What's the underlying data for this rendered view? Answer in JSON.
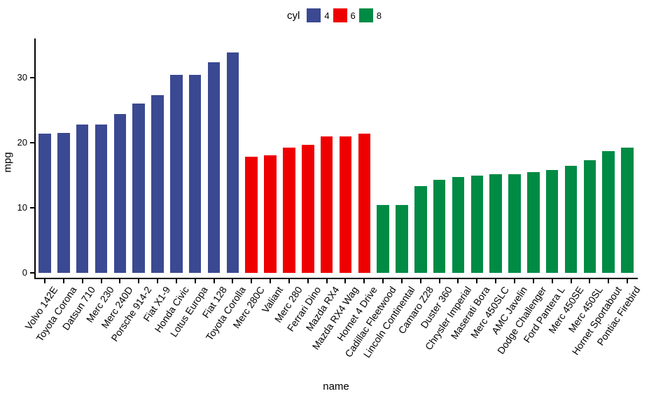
{
  "chart_data": {
    "type": "bar",
    "title": "",
    "xlabel": "name",
    "ylabel": "mpg",
    "grid": false,
    "background": "#ffffff",
    "axis_color": "#000000",
    "ylim": [
      0,
      36
    ],
    "yticks": [
      0,
      10,
      20,
      30
    ],
    "legend": {
      "title": "cyl",
      "position": "top",
      "entries": [
        {
          "label": "4",
          "color": "#3B4992"
        },
        {
          "label": "6",
          "color": "#EE0000"
        },
        {
          "label": "8",
          "color": "#008B45"
        }
      ]
    },
    "bars": [
      {
        "name": "Volvo 142E",
        "mpg": 21.4,
        "cyl": "4"
      },
      {
        "name": "Toyota Corona",
        "mpg": 21.5,
        "cyl": "4"
      },
      {
        "name": "Datsun 710",
        "mpg": 22.8,
        "cyl": "4"
      },
      {
        "name": "Merc 230",
        "mpg": 22.8,
        "cyl": "4"
      },
      {
        "name": "Merc 240D",
        "mpg": 24.4,
        "cyl": "4"
      },
      {
        "name": "Porsche 914-2",
        "mpg": 26.0,
        "cyl": "4"
      },
      {
        "name": "Fiat X1-9",
        "mpg": 27.3,
        "cyl": "4"
      },
      {
        "name": "Honda Civic",
        "mpg": 30.4,
        "cyl": "4"
      },
      {
        "name": "Lotus Europa",
        "mpg": 30.4,
        "cyl": "4"
      },
      {
        "name": "Fiat 128",
        "mpg": 32.4,
        "cyl": "4"
      },
      {
        "name": "Toyota Corolla",
        "mpg": 33.9,
        "cyl": "4"
      },
      {
        "name": "Merc 280C",
        "mpg": 17.8,
        "cyl": "6"
      },
      {
        "name": "Valiant",
        "mpg": 18.1,
        "cyl": "6"
      },
      {
        "name": "Merc 280",
        "mpg": 19.2,
        "cyl": "6"
      },
      {
        "name": "Ferrari Dino",
        "mpg": 19.7,
        "cyl": "6"
      },
      {
        "name": "Mazda RX4",
        "mpg": 21.0,
        "cyl": "6"
      },
      {
        "name": "Mazda RX4 Wag",
        "mpg": 21.0,
        "cyl": "6"
      },
      {
        "name": "Hornet 4 Drive",
        "mpg": 21.4,
        "cyl": "6"
      },
      {
        "name": "Cadillac Fleetwood",
        "mpg": 10.4,
        "cyl": "8"
      },
      {
        "name": "Lincoln Continental",
        "mpg": 10.4,
        "cyl": "8"
      },
      {
        "name": "Camaro Z28",
        "mpg": 13.3,
        "cyl": "8"
      },
      {
        "name": "Duster 360",
        "mpg": 14.3,
        "cyl": "8"
      },
      {
        "name": "Chrysler Imperial",
        "mpg": 14.7,
        "cyl": "8"
      },
      {
        "name": "Maserati Bora",
        "mpg": 15.0,
        "cyl": "8"
      },
      {
        "name": "Merc 450SLC",
        "mpg": 15.2,
        "cyl": "8"
      },
      {
        "name": "AMC Javelin",
        "mpg": 15.2,
        "cyl": "8"
      },
      {
        "name": "Dodge Challenger",
        "mpg": 15.5,
        "cyl": "8"
      },
      {
        "name": "Ford Pantera L",
        "mpg": 15.8,
        "cyl": "8"
      },
      {
        "name": "Merc 450SE",
        "mpg": 16.4,
        "cyl": "8"
      },
      {
        "name": "Merc 450SL",
        "mpg": 17.3,
        "cyl": "8"
      },
      {
        "name": "Hornet Sportabout",
        "mpg": 18.7,
        "cyl": "8"
      },
      {
        "name": "Pontiac Firebird",
        "mpg": 19.2,
        "cyl": "8"
      }
    ]
  }
}
